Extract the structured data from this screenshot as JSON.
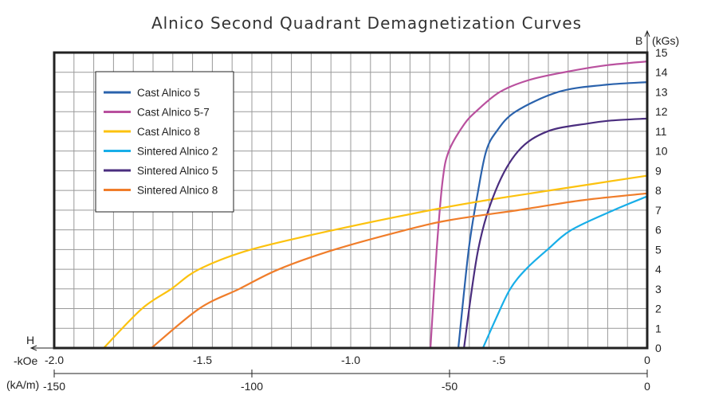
{
  "chart_data": {
    "type": "line",
    "title": "Alnico Second Quadrant Demagnetization Curves",
    "xlabel": "H",
    "x_unit_primary": "-kOe",
    "x_unit_secondary": "(kA/m)",
    "ylabel": "B",
    "y_unit": "(kGs)",
    "xlim": [
      -2.0,
      0
    ],
    "ylim": [
      0,
      15
    ],
    "x_ticks_primary": [
      "-2.0",
      "-1.5",
      "-1.0",
      "-.5",
      "0"
    ],
    "x_ticks_primary_values": [
      -2.0,
      -1.5,
      -1.0,
      -0.5,
      0
    ],
    "x_ticks_secondary": [
      "-150",
      "-100",
      "-50",
      "0"
    ],
    "x_ticks_secondary_values": [
      -150,
      -100,
      -50,
      0
    ],
    "y_ticks": [
      "0",
      "1",
      "2",
      "3",
      "4",
      "5",
      "6",
      "7",
      "8",
      "9",
      "10",
      "11",
      "12",
      "13",
      "14",
      "15"
    ],
    "grid": true,
    "legend_position": "top-left",
    "series": [
      {
        "name": "Cast Alnico 5",
        "color": "#2a62ac",
        "points": [
          [
            -0.637,
            0
          ],
          [
            -0.602,
            5
          ],
          [
            -0.57,
            8
          ],
          [
            -0.543,
            10
          ],
          [
            -0.508,
            11
          ],
          [
            -0.444,
            12
          ],
          [
            -0.3,
            13
          ],
          [
            -0.15,
            13.35
          ],
          [
            0,
            13.5
          ]
        ]
      },
      {
        "name": "Cast Alnico 5-7",
        "color": "#b9509e",
        "points": [
          [
            -0.731,
            0
          ],
          [
            -0.71,
            5
          ],
          [
            -0.69,
            8.5
          ],
          [
            -0.669,
            10
          ],
          [
            -0.62,
            11.3
          ],
          [
            -0.578,
            12
          ],
          [
            -0.497,
            13
          ],
          [
            -0.4,
            13.6
          ],
          [
            -0.28,
            14
          ],
          [
            -0.14,
            14.35
          ],
          [
            0,
            14.55
          ]
        ]
      },
      {
        "name": "Cast Alnico 8",
        "color": "#fcc20e",
        "points": [
          [
            -1.833,
            0
          ],
          [
            -1.704,
            2
          ],
          [
            -1.605,
            3
          ],
          [
            -1.511,
            4
          ],
          [
            -1.336,
            5
          ],
          [
            -1.054,
            6
          ],
          [
            -0.731,
            7
          ],
          [
            -0.543,
            7.5
          ],
          [
            -0.328,
            8
          ],
          [
            0,
            8.75
          ]
        ]
      },
      {
        "name": "Sintered Alnico 2",
        "color": "#18aee8",
        "points": [
          [
            -0.554,
            0
          ],
          [
            -0.51,
            1.5
          ],
          [
            -0.462,
            3
          ],
          [
            -0.409,
            4
          ],
          [
            -0.336,
            5
          ],
          [
            -0.255,
            6
          ],
          [
            -0.113,
            7
          ],
          [
            0,
            7.7
          ]
        ]
      },
      {
        "name": "Sintered Alnico 5",
        "color": "#4a2d7e",
        "points": [
          [
            -0.618,
            0
          ],
          [
            -0.57,
            5
          ],
          [
            -0.511,
            8
          ],
          [
            -0.435,
            10
          ],
          [
            -0.336,
            11
          ],
          [
            -0.2,
            11.4
          ],
          [
            -0.121,
            11.55
          ],
          [
            0,
            11.65
          ]
        ]
      },
      {
        "name": "Sintered Alnico 8",
        "color": "#f07d2a",
        "points": [
          [
            -1.672,
            0
          ],
          [
            -1.511,
            2
          ],
          [
            -1.376,
            3
          ],
          [
            -1.242,
            4
          ],
          [
            -1.054,
            5
          ],
          [
            -0.812,
            6
          ],
          [
            -0.664,
            6.5
          ],
          [
            -0.435,
            7
          ],
          [
            -0.22,
            7.5
          ],
          [
            0,
            7.85
          ]
        ]
      }
    ]
  }
}
